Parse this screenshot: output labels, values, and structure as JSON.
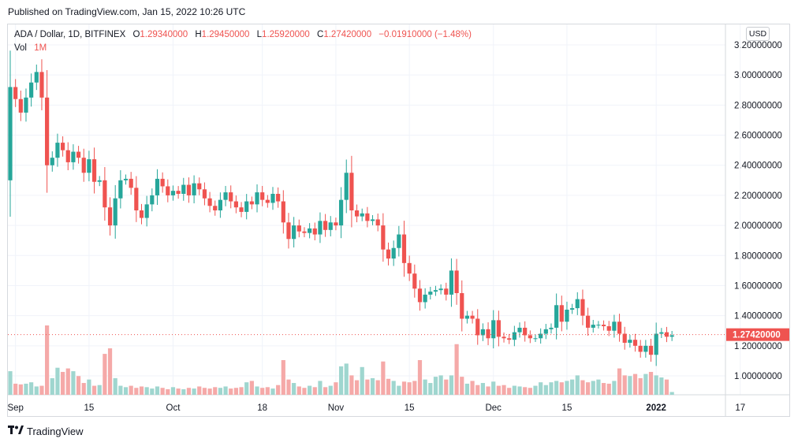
{
  "published_text": "Published on TradingView.com, Jan 15, 2022 10:26 UTC",
  "legend": {
    "symbol": "ADA / Dollar, 1D, BITFINEX",
    "o_label": "O",
    "o_value": "1.29340000",
    "h_label": "H",
    "h_value": "1.29450000",
    "l_label": "L",
    "l_value": "1.25920000",
    "c_label": "C",
    "c_value": "1.27420000",
    "change": "−0.01910000 (−1.48%)",
    "vol_label": "Vol",
    "vol_value": "1M"
  },
  "currency_button": "USD",
  "footer_brand": "TradingView",
  "colors": {
    "up": "#26a69a",
    "down": "#ef5350",
    "vol_up": "#9fd6cf",
    "vol_down": "#f5a9a8",
    "grid": "#f0f3fa",
    "price_line": "#ef5350"
  },
  "icons": {
    "logo": "tradingview-logo-icon",
    "currency": "currency-selector"
  },
  "chart_data": {
    "type": "candlestick",
    "symbol": "ADA / Dollar",
    "interval": "1D",
    "exchange": "BITFINEX",
    "ylim": [
      0.9,
      3.25
    ],
    "y_ticks": [
      "3.20000000",
      "3.00000000",
      "2.80000000",
      "2.60000000",
      "2.40000000",
      "2.20000000",
      "2.00000000",
      "1.80000000",
      "1.60000000",
      "1.40000000",
      "1.20000000",
      "1.00000000"
    ],
    "y_tick_values": [
      3.2,
      3.0,
      2.8,
      2.6,
      2.4,
      2.2,
      2.0,
      1.8,
      1.6,
      1.4,
      1.2,
      1.0
    ],
    "x_ticks": [
      {
        "label": "Sep",
        "date": "2021-09-01"
      },
      {
        "label": "15",
        "date": "2021-09-15"
      },
      {
        "label": "Oct",
        "date": "2021-10-01"
      },
      {
        "label": "18",
        "date": "2021-10-18"
      },
      {
        "label": "Nov",
        "date": "2021-11-01"
      },
      {
        "label": "15",
        "date": "2021-11-15"
      },
      {
        "label": "Dec",
        "date": "2021-12-01"
      },
      {
        "label": "15",
        "date": "2021-12-15"
      },
      {
        "label": "2022",
        "date": "2022-01-01"
      },
      {
        "label": "17",
        "date": "2022-01-17"
      }
    ],
    "first_date": "2021-08-31",
    "last_price": 1.2742,
    "last_price_label": "1.27420000",
    "grid": true,
    "closes": [
      2.92,
      2.84,
      2.75,
      2.85,
      2.95,
      3.02,
      2.85,
      2.4,
      2.45,
      2.55,
      2.5,
      2.42,
      2.49,
      2.45,
      2.35,
      2.44,
      2.29,
      2.3,
      2.12,
      2.0,
      2.18,
      2.3,
      2.31,
      2.25,
      2.1,
      2.05,
      2.14,
      2.2,
      2.31,
      2.26,
      2.2,
      2.23,
      2.21,
      2.27,
      2.2,
      2.28,
      2.24,
      2.18,
      2.13,
      2.1,
      2.17,
      2.22,
      2.16,
      2.12,
      2.09,
      2.16,
      2.14,
      2.22,
      2.17,
      2.15,
      2.21,
      2.16,
      2.02,
      1.91,
      2.0,
      1.96,
      1.95,
      1.98,
      1.94,
      2.03,
      1.97,
      2.02,
      2.0,
      2.17,
      2.35,
      2.1,
      2.06,
      2.08,
      2.03,
      2.04,
      2.0,
      1.84,
      1.78,
      1.85,
      1.94,
      1.75,
      1.68,
      1.58,
      1.49,
      1.54,
      1.56,
      1.57,
      1.58,
      1.54,
      1.7,
      1.55,
      1.38,
      1.4,
      1.38,
      1.27,
      1.31,
      1.25,
      1.37,
      1.26,
      1.25,
      1.24,
      1.29,
      1.32,
      1.27,
      1.25,
      1.25,
      1.28,
      1.31,
      1.32,
      1.47,
      1.36,
      1.44,
      1.45,
      1.51,
      1.4,
      1.32,
      1.34,
      1.34,
      1.33,
      1.3,
      1.36,
      1.28,
      1.22,
      1.24,
      1.2,
      1.16,
      1.2,
      1.14,
      1.28,
      1.29,
      1.26,
      1.27
    ],
    "opens_first": 2.3,
    "volumes_relative": [
      0.34,
      0.16,
      0.15,
      0.16,
      0.18,
      0.12,
      0.13,
      1.0,
      0.24,
      0.39,
      0.33,
      0.38,
      0.34,
      0.27,
      0.17,
      0.22,
      0.13,
      0.14,
      0.59,
      0.67,
      0.24,
      0.13,
      0.11,
      0.13,
      0.1,
      0.12,
      0.11,
      0.09,
      0.12,
      0.1,
      0.08,
      0.11,
      0.09,
      0.08,
      0.1,
      0.09,
      0.12,
      0.1,
      0.09,
      0.11,
      0.1,
      0.12,
      0.09,
      0.1,
      0.11,
      0.18,
      0.2,
      0.12,
      0.1,
      0.11,
      0.09,
      0.14,
      0.5,
      0.22,
      0.17,
      0.12,
      0.1,
      0.13,
      0.11,
      0.2,
      0.11,
      0.13,
      0.18,
      0.41,
      0.45,
      0.28,
      0.21,
      0.4,
      0.22,
      0.24,
      0.21,
      0.48,
      0.23,
      0.2,
      0.13,
      0.19,
      0.18,
      0.2,
      0.5,
      0.22,
      0.17,
      0.26,
      0.28,
      0.22,
      0.28,
      0.73,
      0.26,
      0.16,
      0.2,
      0.14,
      0.17,
      0.12,
      0.19,
      0.13,
      0.14,
      0.1,
      0.13,
      0.12,
      0.11,
      0.1,
      0.13,
      0.18,
      0.14,
      0.18,
      0.2,
      0.18,
      0.2,
      0.22,
      0.28,
      0.21,
      0.18,
      0.2,
      0.22,
      0.17,
      0.16,
      0.2,
      0.38,
      0.28,
      0.27,
      0.3,
      0.24,
      0.3,
      0.33,
      0.28,
      0.25,
      0.22,
      0.04
    ]
  }
}
